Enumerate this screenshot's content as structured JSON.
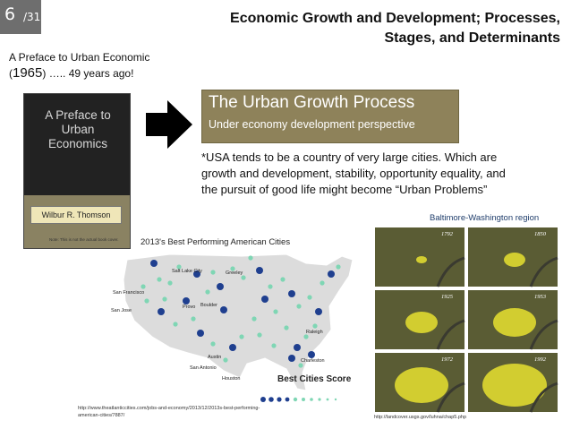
{
  "slide_number": {
    "current": "6",
    "total": "/31"
  },
  "title": "Economic Growth and Development; Processes, Stages, and Determinants",
  "preface": {
    "line1": "A Preface to Urban Economic",
    "paren_open": "(",
    "year": "1965",
    "line2_rest": ") ….. 49 years ago!"
  },
  "book": {
    "title": "A Preface to Urban Economics",
    "author": "Wilbur R. Thomson",
    "note": "Note: This is not the actual book cover."
  },
  "process": {
    "title": "The Urban Growth Process",
    "subtitle": "Under economy development perspective"
  },
  "quote": "*USA tends to be a country of very large cities. Which are growth and development, stability, opportunity equality, and the pursuit of good life might become “Urban Problems”",
  "baltimore_label": "Baltimore-Washington region",
  "best_cities_label": "2013's Best Performing American Cities",
  "map": {
    "legend_title": "Best Cities Score",
    "cities": [
      "San Francisco",
      "San Jose",
      "Salt Lake City",
      "Provo",
      "Boulder",
      "Greeley",
      "Raleigh",
      "Charleston",
      "Austin",
      "San Antonio",
      "Houston"
    ]
  },
  "sat_years": [
    "1792",
    "1850",
    "1925",
    "1953",
    "1972",
    "1992"
  ],
  "sources": {
    "map": "http://www.theatlanticcities.com/jobs-and-economy/2013/12/2013s-best-performing-american-cities/7887/",
    "sat": "http://landcover.usgs.gov/luhna/chap5.php"
  },
  "colors": {
    "slide_badge": "#6e6e6e",
    "process_box": "#8e825a",
    "dots_dark": "#1f3f8f",
    "dots_light": "#7fd6b4",
    "urban_yellow": "#e8e030"
  }
}
